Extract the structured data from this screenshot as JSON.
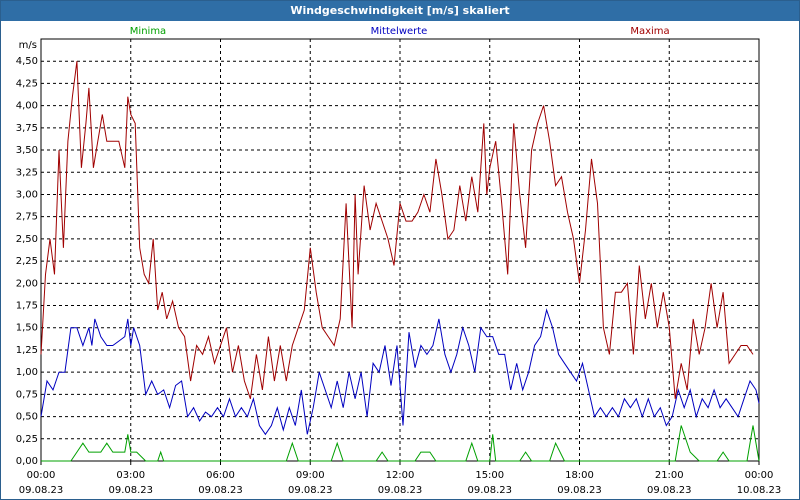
{
  "window": {
    "title": "Windgeschwindigkeit [m/s] skaliert"
  },
  "chart_data": {
    "type": "line",
    "title": "Windgeschwindigkeit [m/s] skaliert",
    "ylabel": "m/s",
    "ylim": [
      0,
      4.75
    ],
    "grid": true,
    "y_ticks": [
      "0,00",
      "0,25",
      "0,50",
      "0,75",
      "1,00",
      "1,25",
      "1,50",
      "1,75",
      "2,00",
      "2,25",
      "2,50",
      "2,75",
      "3,00",
      "3,25",
      "3,50",
      "3,75",
      "4,00",
      "4,25",
      "4,50"
    ],
    "x_ticks": [
      {
        "time": "00:00",
        "date": "09.08.23"
      },
      {
        "time": "03:00",
        "date": "09.08.23"
      },
      {
        "time": "06:00",
        "date": "09.08.23"
      },
      {
        "time": "09:00",
        "date": "09.08.23"
      },
      {
        "time": "12:00",
        "date": "09.08.23"
      },
      {
        "time": "15:00",
        "date": "09.08.23"
      },
      {
        "time": "18:00",
        "date": "09.08.23"
      },
      {
        "time": "21:00",
        "date": "09.08.23"
      },
      {
        "time": "00:00",
        "date": "10.08.23"
      }
    ],
    "x_hours": [
      0,
      24
    ],
    "series": [
      {
        "name": "Minima",
        "color": "#00a000",
        "values": [
          [
            0,
            0
          ],
          [
            1,
            0
          ],
          [
            1.2,
            0.1
          ],
          [
            1.4,
            0.2
          ],
          [
            1.6,
            0.1
          ],
          [
            2,
            0.1
          ],
          [
            2.2,
            0.2
          ],
          [
            2.4,
            0.1
          ],
          [
            2.8,
            0.1
          ],
          [
            2.9,
            0.3
          ],
          [
            3,
            0.1
          ],
          [
            3.2,
            0.1
          ],
          [
            3.5,
            0
          ],
          [
            3.9,
            0
          ],
          [
            4,
            0.1
          ],
          [
            4.1,
            0
          ],
          [
            8.2,
            0
          ],
          [
            8.4,
            0.2
          ],
          [
            8.6,
            0
          ],
          [
            9.7,
            0
          ],
          [
            9.9,
            0.2
          ],
          [
            10.1,
            0
          ],
          [
            11.2,
            0
          ],
          [
            11.4,
            0.1
          ],
          [
            11.6,
            0
          ],
          [
            12.5,
            0
          ],
          [
            12.7,
            0.1
          ],
          [
            13,
            0.1
          ],
          [
            13.2,
            0
          ],
          [
            14.2,
            0
          ],
          [
            14.4,
            0.2
          ],
          [
            14.6,
            0
          ],
          [
            15,
            0
          ],
          [
            15.1,
            0.3
          ],
          [
            15.2,
            0
          ],
          [
            16,
            0
          ],
          [
            16.2,
            0.1
          ],
          [
            16.4,
            0
          ],
          [
            17,
            0
          ],
          [
            17.2,
            0.2
          ],
          [
            17.5,
            0
          ],
          [
            21.2,
            0
          ],
          [
            21.4,
            0.4
          ],
          [
            21.7,
            0.1
          ],
          [
            22,
            0
          ],
          [
            22.6,
            0
          ],
          [
            22.8,
            0.1
          ],
          [
            23,
            0
          ],
          [
            23.6,
            0
          ],
          [
            23.8,
            0.4
          ],
          [
            24,
            0
          ]
        ]
      },
      {
        "name": "Mittelwerte",
        "color": "#0000c0",
        "values": [
          [
            0,
            0.5
          ],
          [
            0.2,
            0.9
          ],
          [
            0.4,
            0.8
          ],
          [
            0.6,
            1.0
          ],
          [
            0.8,
            1.0
          ],
          [
            1,
            1.5
          ],
          [
            1.2,
            1.5
          ],
          [
            1.4,
            1.3
          ],
          [
            1.6,
            1.5
          ],
          [
            1.7,
            1.3
          ],
          [
            1.8,
            1.6
          ],
          [
            2,
            1.4
          ],
          [
            2.2,
            1.3
          ],
          [
            2.4,
            1.3
          ],
          [
            2.6,
            1.35
          ],
          [
            2.8,
            1.4
          ],
          [
            2.9,
            1.6
          ],
          [
            3,
            1.3
          ],
          [
            3.1,
            1.5
          ],
          [
            3.2,
            1.4
          ],
          [
            3.3,
            1.3
          ],
          [
            3.5,
            0.75
          ],
          [
            3.7,
            0.9
          ],
          [
            3.9,
            0.75
          ],
          [
            4.1,
            0.8
          ],
          [
            4.3,
            0.6
          ],
          [
            4.5,
            0.85
          ],
          [
            4.7,
            0.9
          ],
          [
            4.9,
            0.5
          ],
          [
            5.1,
            0.6
          ],
          [
            5.3,
            0.45
          ],
          [
            5.5,
            0.55
          ],
          [
            5.7,
            0.5
          ],
          [
            5.9,
            0.6
          ],
          [
            6.1,
            0.5
          ],
          [
            6.3,
            0.7
          ],
          [
            6.5,
            0.5
          ],
          [
            6.7,
            0.6
          ],
          [
            6.9,
            0.5
          ],
          [
            7.1,
            0.7
          ],
          [
            7.3,
            0.4
          ],
          [
            7.5,
            0.3
          ],
          [
            7.7,
            0.4
          ],
          [
            7.9,
            0.6
          ],
          [
            8.1,
            0.35
          ],
          [
            8.3,
            0.6
          ],
          [
            8.5,
            0.4
          ],
          [
            8.7,
            0.8
          ],
          [
            8.9,
            0.3
          ],
          [
            9.1,
            0.6
          ],
          [
            9.3,
            1.0
          ],
          [
            9.5,
            0.8
          ],
          [
            9.7,
            0.6
          ],
          [
            9.9,
            0.9
          ],
          [
            10.1,
            0.6
          ],
          [
            10.3,
            1.0
          ],
          [
            10.5,
            0.7
          ],
          [
            10.7,
            1.0
          ],
          [
            10.9,
            0.5
          ],
          [
            11.1,
            1.1
          ],
          [
            11.3,
            1.0
          ],
          [
            11.5,
            1.3
          ],
          [
            11.7,
            0.85
          ],
          [
            11.9,
            1.3
          ],
          [
            12.1,
            0.4
          ],
          [
            12.3,
            1.45
          ],
          [
            12.5,
            1.05
          ],
          [
            12.7,
            1.3
          ],
          [
            12.9,
            1.2
          ],
          [
            13.1,
            1.3
          ],
          [
            13.3,
            1.6
          ],
          [
            13.5,
            1.2
          ],
          [
            13.7,
            1.0
          ],
          [
            13.9,
            1.2
          ],
          [
            14.1,
            1.5
          ],
          [
            14.3,
            1.3
          ],
          [
            14.5,
            1.0
          ],
          [
            14.7,
            1.5
          ],
          [
            14.9,
            1.4
          ],
          [
            15.1,
            1.4
          ],
          [
            15.3,
            1.2
          ],
          [
            15.5,
            1.2
          ],
          [
            15.7,
            0.8
          ],
          [
            15.9,
            1.1
          ],
          [
            16.1,
            0.8
          ],
          [
            16.3,
            1.0
          ],
          [
            16.5,
            1.3
          ],
          [
            16.7,
            1.4
          ],
          [
            16.9,
            1.7
          ],
          [
            17.1,
            1.5
          ],
          [
            17.3,
            1.2
          ],
          [
            17.5,
            1.1
          ],
          [
            17.7,
            1.0
          ],
          [
            17.9,
            0.9
          ],
          [
            18.1,
            1.1
          ],
          [
            18.3,
            0.8
          ],
          [
            18.5,
            0.5
          ],
          [
            18.7,
            0.6
          ],
          [
            18.9,
            0.5
          ],
          [
            19.1,
            0.6
          ],
          [
            19.3,
            0.5
          ],
          [
            19.5,
            0.7
          ],
          [
            19.7,
            0.6
          ],
          [
            19.9,
            0.7
          ],
          [
            20.1,
            0.5
          ],
          [
            20.3,
            0.7
          ],
          [
            20.5,
            0.5
          ],
          [
            20.7,
            0.6
          ],
          [
            20.9,
            0.4
          ],
          [
            21.1,
            0.5
          ],
          [
            21.3,
            0.8
          ],
          [
            21.5,
            0.6
          ],
          [
            21.7,
            0.8
          ],
          [
            21.9,
            0.5
          ],
          [
            22.1,
            0.7
          ],
          [
            22.3,
            0.6
          ],
          [
            22.5,
            0.8
          ],
          [
            22.7,
            0.6
          ],
          [
            22.9,
            0.7
          ],
          [
            23.1,
            0.6
          ],
          [
            23.3,
            0.5
          ],
          [
            23.5,
            0.7
          ],
          [
            23.7,
            0.9
          ],
          [
            23.9,
            0.8
          ],
          [
            24,
            0.65
          ]
        ]
      },
      {
        "name": "Maxima",
        "color": "#a00000",
        "values": [
          [
            0,
            1.2
          ],
          [
            0.15,
            2.1
          ],
          [
            0.3,
            2.5
          ],
          [
            0.45,
            2.1
          ],
          [
            0.6,
            3.5
          ],
          [
            0.75,
            2.4
          ],
          [
            0.9,
            3.6
          ],
          [
            1.05,
            4.1
          ],
          [
            1.2,
            4.5
          ],
          [
            1.35,
            3.3
          ],
          [
            1.5,
            3.8
          ],
          [
            1.6,
            4.2
          ],
          [
            1.75,
            3.3
          ],
          [
            1.9,
            3.6
          ],
          [
            2.05,
            3.9
          ],
          [
            2.2,
            3.6
          ],
          [
            2.4,
            3.6
          ],
          [
            2.6,
            3.6
          ],
          [
            2.8,
            3.3
          ],
          [
            2.9,
            4.1
          ],
          [
            3,
            3.9
          ],
          [
            3.15,
            3.8
          ],
          [
            3.3,
            2.4
          ],
          [
            3.45,
            2.1
          ],
          [
            3.6,
            2.0
          ],
          [
            3.75,
            2.5
          ],
          [
            3.9,
            1.7
          ],
          [
            4.05,
            1.9
          ],
          [
            4.2,
            1.6
          ],
          [
            4.4,
            1.8
          ],
          [
            4.6,
            1.5
          ],
          [
            4.8,
            1.4
          ],
          [
            5,
            0.9
          ],
          [
            5.2,
            1.3
          ],
          [
            5.4,
            1.2
          ],
          [
            5.6,
            1.4
          ],
          [
            5.8,
            1.1
          ],
          [
            6,
            1.3
          ],
          [
            6.2,
            1.5
          ],
          [
            6.4,
            1.0
          ],
          [
            6.6,
            1.3
          ],
          [
            6.8,
            0.9
          ],
          [
            7,
            0.7
          ],
          [
            7.2,
            1.2
          ],
          [
            7.4,
            0.8
          ],
          [
            7.6,
            1.4
          ],
          [
            7.8,
            0.9
          ],
          [
            8,
            1.3
          ],
          [
            8.2,
            0.9
          ],
          [
            8.4,
            1.3
          ],
          [
            8.6,
            1.5
          ],
          [
            8.8,
            1.7
          ],
          [
            9,
            2.4
          ],
          [
            9.2,
            1.9
          ],
          [
            9.4,
            1.5
          ],
          [
            9.6,
            1.4
          ],
          [
            9.8,
            1.3
          ],
          [
            10,
            1.6
          ],
          [
            10.2,
            2.9
          ],
          [
            10.4,
            1.5
          ],
          [
            10.5,
            3.0
          ],
          [
            10.6,
            2.1
          ],
          [
            10.8,
            3.1
          ],
          [
            11,
            2.6
          ],
          [
            11.2,
            2.9
          ],
          [
            11.4,
            2.7
          ],
          [
            11.6,
            2.5
          ],
          [
            11.8,
            2.2
          ],
          [
            12,
            2.9
          ],
          [
            12.2,
            2.7
          ],
          [
            12.4,
            2.7
          ],
          [
            12.6,
            2.8
          ],
          [
            12.8,
            3.0
          ],
          [
            13,
            2.8
          ],
          [
            13.2,
            3.4
          ],
          [
            13.4,
            3.0
          ],
          [
            13.6,
            2.5
          ],
          [
            13.8,
            2.6
          ],
          [
            14,
            3.1
          ],
          [
            14.2,
            2.7
          ],
          [
            14.4,
            3.2
          ],
          [
            14.6,
            2.8
          ],
          [
            14.8,
            3.8
          ],
          [
            14.9,
            3.0
          ],
          [
            15,
            3.3
          ],
          [
            15.2,
            3.6
          ],
          [
            15.4,
            2.9
          ],
          [
            15.6,
            2.1
          ],
          [
            15.8,
            3.8
          ],
          [
            16,
            3.0
          ],
          [
            16.2,
            2.4
          ],
          [
            16.4,
            3.5
          ],
          [
            16.6,
            3.8
          ],
          [
            16.8,
            4.0
          ],
          [
            17,
            3.6
          ],
          [
            17.2,
            3.1
          ],
          [
            17.4,
            3.2
          ],
          [
            17.6,
            2.8
          ],
          [
            17.8,
            2.5
          ],
          [
            18,
            2.0
          ],
          [
            18.2,
            2.6
          ],
          [
            18.4,
            3.4
          ],
          [
            18.6,
            2.9
          ],
          [
            18.8,
            1.5
          ],
          [
            19,
            1.2
          ],
          [
            19.2,
            1.9
          ],
          [
            19.4,
            1.9
          ],
          [
            19.6,
            2.0
          ],
          [
            19.8,
            1.2
          ],
          [
            20,
            2.2
          ],
          [
            20.2,
            1.6
          ],
          [
            20.4,
            2.0
          ],
          [
            20.6,
            1.5
          ],
          [
            20.8,
            1.9
          ],
          [
            21,
            1.5
          ],
          [
            21.2,
            0.7
          ],
          [
            21.4,
            1.1
          ],
          [
            21.6,
            0.8
          ],
          [
            21.8,
            1.6
          ],
          [
            22,
            1.2
          ],
          [
            22.2,
            1.5
          ],
          [
            22.4,
            2.0
          ],
          [
            22.6,
            1.5
          ],
          [
            22.8,
            1.9
          ],
          [
            23,
            1.1
          ],
          [
            23.2,
            1.2
          ],
          [
            23.4,
            1.3
          ],
          [
            23.6,
            1.3
          ],
          [
            23.8,
            1.2
          ]
        ]
      }
    ]
  }
}
